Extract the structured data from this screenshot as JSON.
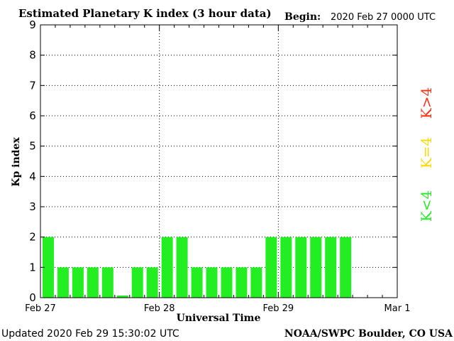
{
  "header": {
    "title": "Estimated Planetary K index (3 hour data)",
    "begin_label": "Begin:",
    "begin_value": "2020 Feb 27 0000 UTC"
  },
  "footer": {
    "updated": "Updated 2020 Feb 29 15:30:02 UTC",
    "credit": "NOAA/SWPC Boulder, CO USA"
  },
  "legend": {
    "low": "K<4",
    "mid": "K=4",
    "high": "K>4"
  },
  "colors": {
    "low": "#22ee22",
    "mid": "#ffd800",
    "high": "#ff3010",
    "axis": "#000000",
    "grid": "#000000"
  },
  "chart_data": {
    "type": "bar",
    "xlabel": "Universal Time",
    "ylabel": "Kp index",
    "ylim": [
      0,
      9
    ],
    "yticks": [
      0,
      1,
      2,
      3,
      4,
      5,
      6,
      7,
      8,
      9
    ],
    "day_ticks": [
      "Feb 27",
      "Feb 28",
      "Feb 29",
      "Mar 1"
    ],
    "bin_hours": 3,
    "values": [
      2,
      1,
      1,
      1,
      1,
      0.07,
      1,
      1,
      2,
      2,
      1,
      1,
      1,
      1,
      1,
      2,
      2,
      2,
      2,
      2,
      2
    ],
    "grid": "dotted"
  }
}
